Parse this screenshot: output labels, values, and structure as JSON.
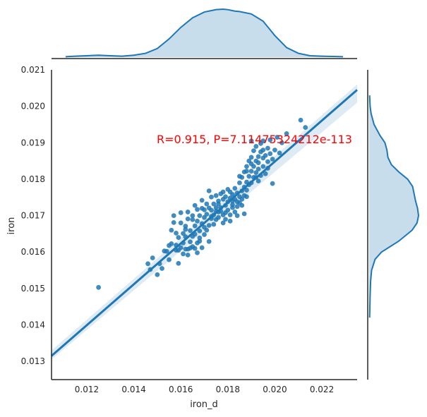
{
  "chart_data": {
    "type": "scatter",
    "xlabel": "iron_d",
    "ylabel": "iron",
    "xlim": [
      0.0105,
      0.0235
    ],
    "ylim": [
      0.0125,
      0.021
    ],
    "xticks": [
      "0.012",
      "0.014",
      "0.016",
      "0.018",
      "0.020",
      "0.022"
    ],
    "yticks": [
      "0.013",
      "0.014",
      "0.015",
      "0.016",
      "0.017",
      "0.018",
      "0.019",
      "0.020",
      "0.021"
    ],
    "annotation": "R=0.915, P=7.11475324212e-113",
    "annotation_color": "#ff0000",
    "point_color": "#1f77b4",
    "regression": {
      "x": [
        0.0105,
        0.0235
      ],
      "y": [
        0.01315,
        0.02045
      ],
      "ci_lower_end": [
        0.01305,
        0.0201
      ],
      "ci_upper_end": [
        0.0133,
        0.0206
      ]
    },
    "grid": false,
    "marginal_x_kde": {
      "x": [
        0.0111,
        0.0115,
        0.012,
        0.0125,
        0.013,
        0.0135,
        0.014,
        0.0145,
        0.015,
        0.0155,
        0.016,
        0.0165,
        0.017,
        0.0175,
        0.0178,
        0.018,
        0.0183,
        0.0185,
        0.019,
        0.0195,
        0.02,
        0.0205,
        0.021,
        0.0215,
        0.022,
        0.0229
      ],
      "density": [
        0.01,
        0.02,
        0.03,
        0.04,
        0.03,
        0.02,
        0.04,
        0.08,
        0.18,
        0.38,
        0.62,
        0.82,
        0.94,
        0.99,
        1.0,
        0.99,
        0.96,
        0.95,
        0.9,
        0.75,
        0.45,
        0.2,
        0.08,
        0.03,
        0.02,
        0.01
      ]
    },
    "marginal_y_kde": {
      "y": [
        0.0142,
        0.0148,
        0.0152,
        0.0155,
        0.0158,
        0.016,
        0.0163,
        0.0166,
        0.0168,
        0.017,
        0.0172,
        0.0174,
        0.0176,
        0.0178,
        0.018,
        0.0182,
        0.0184,
        0.0186,
        0.0188,
        0.019,
        0.0192,
        0.0195,
        0.0198,
        0.02,
        0.0203
      ],
      "density": [
        0.01,
        0.02,
        0.03,
        0.05,
        0.12,
        0.25,
        0.6,
        0.87,
        0.97,
        1.0,
        0.98,
        0.94,
        0.91,
        0.88,
        0.78,
        0.6,
        0.45,
        0.38,
        0.36,
        0.32,
        0.22,
        0.1,
        0.04,
        0.02,
        0.01
      ]
    },
    "points": [
      [
        0.0125,
        0.01503
      ],
      [
        0.0146,
        0.01568
      ],
      [
        0.0147,
        0.01552
      ],
      [
        0.0148,
        0.01584
      ],
      [
        0.015,
        0.01538
      ],
      [
        0.0151,
        0.01568
      ],
      [
        0.0152,
        0.01555
      ],
      [
        0.0153,
        0.01603
      ],
      [
        0.0155,
        0.01618
      ],
      [
        0.0155,
        0.01579
      ],
      [
        0.0156,
        0.01623
      ],
      [
        0.0156,
        0.0166
      ],
      [
        0.0157,
        0.01681
      ],
      [
        0.0158,
        0.01619
      ],
      [
        0.0158,
        0.01652
      ],
      [
        0.0159,
        0.01569
      ],
      [
        0.0159,
        0.0164
      ],
      [
        0.016,
        0.0168
      ],
      [
        0.016,
        0.01612
      ],
      [
        0.016,
        0.01708
      ],
      [
        0.0161,
        0.01651
      ],
      [
        0.0161,
        0.01625
      ],
      [
        0.0162,
        0.01608
      ],
      [
        0.0162,
        0.01642
      ],
      [
        0.0162,
        0.01671
      ],
      [
        0.0163,
        0.01691
      ],
      [
        0.0163,
        0.01608
      ],
      [
        0.0163,
        0.0171
      ],
      [
        0.0164,
        0.01628
      ],
      [
        0.0164,
        0.01659
      ],
      [
        0.0164,
        0.01611
      ],
      [
        0.0165,
        0.01689
      ],
      [
        0.0165,
        0.01643
      ],
      [
        0.0165,
        0.017
      ],
      [
        0.0166,
        0.01672
      ],
      [
        0.0166,
        0.0161
      ],
      [
        0.0166,
        0.01649
      ],
      [
        0.0167,
        0.01717
      ],
      [
        0.0167,
        0.01625
      ],
      [
        0.0167,
        0.01685
      ],
      [
        0.0168,
        0.01658
      ],
      [
        0.0168,
        0.017
      ],
      [
        0.0168,
        0.01639
      ],
      [
        0.0169,
        0.01612
      ],
      [
        0.0169,
        0.0172
      ],
      [
        0.0169,
        0.01678
      ],
      [
        0.017,
        0.01648
      ],
      [
        0.017,
        0.01695
      ],
      [
        0.017,
        0.01716
      ],
      [
        0.0171,
        0.0166
      ],
      [
        0.0171,
        0.01704
      ],
      [
        0.0171,
        0.01732
      ],
      [
        0.0172,
        0.01673
      ],
      [
        0.0172,
        0.01629
      ],
      [
        0.0172,
        0.01721
      ],
      [
        0.0173,
        0.01692
      ],
      [
        0.0173,
        0.01751
      ],
      [
        0.0173,
        0.01715
      ],
      [
        0.0174,
        0.01676
      ],
      [
        0.0174,
        0.01732
      ],
      [
        0.0174,
        0.01702
      ],
      [
        0.0175,
        0.01722
      ],
      [
        0.0175,
        0.01689
      ],
      [
        0.0175,
        0.01755
      ],
      [
        0.0176,
        0.0171
      ],
      [
        0.0176,
        0.0174
      ],
      [
        0.0176,
        0.01695
      ],
      [
        0.0177,
        0.01722
      ],
      [
        0.0177,
        0.0176
      ],
      [
        0.0177,
        0.01712
      ],
      [
        0.0178,
        0.01745
      ],
      [
        0.0178,
        0.01702
      ],
      [
        0.0178,
        0.01765
      ],
      [
        0.0179,
        0.01728
      ],
      [
        0.0179,
        0.01752
      ],
      [
        0.0179,
        0.0169
      ],
      [
        0.018,
        0.01738
      ],
      [
        0.018,
        0.01772
      ],
      [
        0.018,
        0.01715
      ],
      [
        0.0181,
        0.01748
      ],
      [
        0.0181,
        0.01702
      ],
      [
        0.0181,
        0.01765
      ],
      [
        0.0182,
        0.0173
      ],
      [
        0.0182,
        0.01758
      ],
      [
        0.0182,
        0.01722
      ],
      [
        0.0183,
        0.01745
      ],
      [
        0.0183,
        0.0171
      ],
      [
        0.0183,
        0.01775
      ],
      [
        0.0184,
        0.01738
      ],
      [
        0.0184,
        0.01762
      ],
      [
        0.0184,
        0.01725
      ],
      [
        0.0185,
        0.01752
      ],
      [
        0.0185,
        0.0179
      ],
      [
        0.0185,
        0.01735
      ],
      [
        0.0186,
        0.01768
      ],
      [
        0.0186,
        0.01745
      ],
      [
        0.0186,
        0.01805
      ],
      [
        0.0187,
        0.01778
      ],
      [
        0.0187,
        0.0182
      ],
      [
        0.0187,
        0.01755
      ],
      [
        0.0188,
        0.01792
      ],
      [
        0.0188,
        0.01835
      ],
      [
        0.0188,
        0.0177
      ],
      [
        0.0189,
        0.01808
      ],
      [
        0.0189,
        0.0185
      ],
      [
        0.0189,
        0.01785
      ],
      [
        0.019,
        0.01822
      ],
      [
        0.019,
        0.0179
      ],
      [
        0.019,
        0.0186
      ],
      [
        0.0191,
        0.01835
      ],
      [
        0.0191,
        0.01805
      ],
      [
        0.0191,
        0.01878
      ],
      [
        0.0192,
        0.0185
      ],
      [
        0.0192,
        0.01818
      ],
      [
        0.0192,
        0.0189
      ],
      [
        0.0193,
        0.01862
      ],
      [
        0.0193,
        0.01828
      ],
      [
        0.0193,
        0.01845
      ],
      [
        0.0194,
        0.01875
      ],
      [
        0.0194,
        0.0181
      ],
      [
        0.0194,
        0.01898
      ],
      [
        0.0195,
        0.01858
      ],
      [
        0.0195,
        0.0188
      ],
      [
        0.0195,
        0.01835
      ],
      [
        0.0196,
        0.01865
      ],
      [
        0.0196,
        0.01815
      ],
      [
        0.0197,
        0.01885
      ],
      [
        0.0197,
        0.01848
      ],
      [
        0.0198,
        0.0187
      ],
      [
        0.0198,
        0.01908
      ],
      [
        0.0199,
        0.01855
      ],
      [
        0.0199,
        0.01788
      ],
      [
        0.02,
        0.0188
      ],
      [
        0.0201,
        0.01915
      ],
      [
        0.0202,
        0.01872
      ],
      [
        0.0203,
        0.019
      ],
      [
        0.0205,
        0.01925
      ],
      [
        0.0211,
        0.01962
      ],
      [
        0.0213,
        0.01942
      ],
      [
        0.0161,
        0.01595
      ],
      [
        0.0159,
        0.01605
      ],
      [
        0.0163,
        0.01592
      ],
      [
        0.0167,
        0.01598
      ],
      [
        0.0157,
        0.017
      ],
      [
        0.0166,
        0.01728
      ],
      [
        0.0169,
        0.01742
      ],
      [
        0.0172,
        0.01768
      ],
      [
        0.0175,
        0.01712
      ],
      [
        0.0178,
        0.0168
      ],
      [
        0.0181,
        0.01685
      ],
      [
        0.0184,
        0.017
      ],
      [
        0.0187,
        0.01705
      ],
      [
        0.0185,
        0.01808
      ],
      [
        0.0188,
        0.01822
      ],
      [
        0.019,
        0.01842
      ],
      [
        0.0192,
        0.01805
      ],
      [
        0.0193,
        0.01795
      ],
      [
        0.0195,
        0.01905
      ],
      [
        0.019,
        0.01905
      ],
      [
        0.0197,
        0.0183
      ],
      [
        0.0188,
        0.01752
      ],
      [
        0.0186,
        0.01728
      ],
      [
        0.0182,
        0.0174
      ],
      [
        0.0179,
        0.01708
      ],
      [
        0.0176,
        0.01732
      ],
      [
        0.0173,
        0.01698
      ],
      [
        0.017,
        0.01668
      ],
      [
        0.0168,
        0.0163
      ],
      [
        0.0165,
        0.01615
      ],
      [
        0.0162,
        0.01662
      ],
      [
        0.0158,
        0.01605
      ],
      [
        0.0154,
        0.01602
      ]
    ]
  }
}
